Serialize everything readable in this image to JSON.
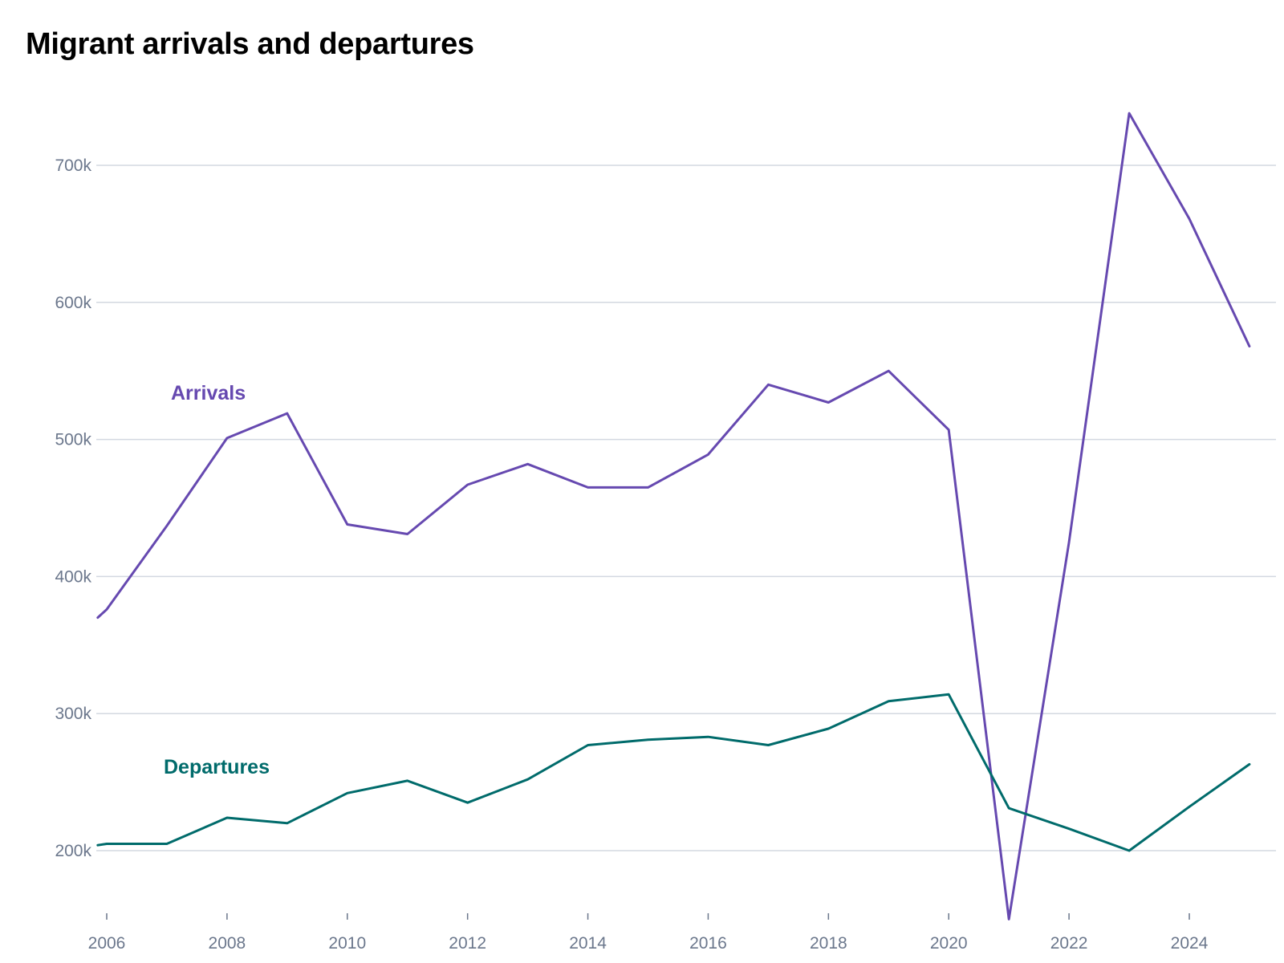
{
  "chart_data": {
    "type": "line",
    "title": "Migrant arrivals and departures",
    "xlabel": "",
    "ylabel": "",
    "x": [
      2005.85,
      2006,
      2007,
      2008,
      2009,
      2010,
      2011,
      2012,
      2013,
      2014,
      2015,
      2016,
      2017,
      2018,
      2019,
      2020,
      2021,
      2022,
      2023,
      2024,
      2025
    ],
    "xlim": [
      2005.85,
      2025.5
    ],
    "ylim": [
      150000,
      740000
    ],
    "x_ticks": [
      2006,
      2008,
      2010,
      2012,
      2014,
      2016,
      2018,
      2020,
      2022,
      2024
    ],
    "x_tick_labels": [
      "2006",
      "2008",
      "2010",
      "2012",
      "2014",
      "2016",
      "2018",
      "2020",
      "2022",
      "2024"
    ],
    "y_ticks": [
      200000,
      300000,
      400000,
      500000,
      600000,
      700000
    ],
    "y_tick_labels": [
      "200k",
      "300k",
      "400k",
      "500k",
      "600k",
      "700k"
    ],
    "grid": true,
    "legend": "inline labels",
    "series": [
      {
        "name": "Arrivals",
        "color": "#6649b0",
        "values": [
          370000,
          376000,
          437000,
          501000,
          519000,
          438000,
          431000,
          467000,
          482000,
          465000,
          465000,
          489000,
          540000,
          527000,
          550000,
          507000,
          150000,
          425000,
          738000,
          661000,
          568000
        ]
      },
      {
        "name": "Departures",
        "color": "#006b6b",
        "values": [
          204000,
          205000,
          205000,
          224000,
          220000,
          242000,
          251000,
          235000,
          252000,
          277000,
          281000,
          283000,
          277000,
          289000,
          309000,
          314000,
          231000,
          216000,
          200000,
          232000,
          263000
        ]
      }
    ]
  }
}
